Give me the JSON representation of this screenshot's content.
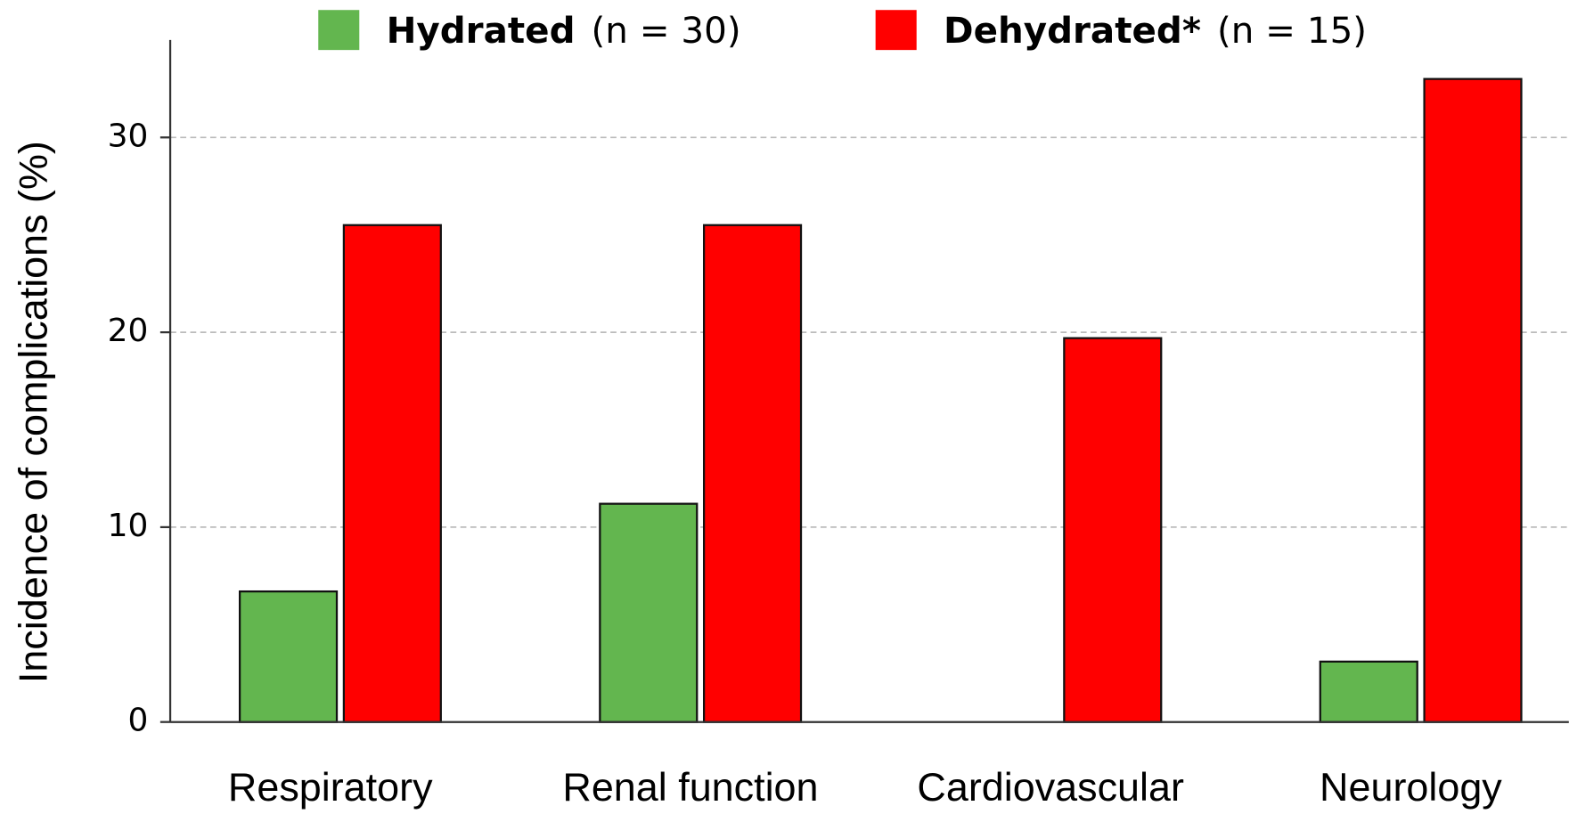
{
  "chart_data": {
    "type": "bar",
    "y_label": "Incidence of complications (%)",
    "categories": [
      "Respiratory",
      "Renal function",
      "Cardiovascular",
      "Neurology"
    ],
    "series": [
      {
        "name": "Hydrated",
        "sample_label": "(n = 30)",
        "color": "#63b64f",
        "values": [
          6.7,
          11.2,
          0,
          3.1
        ]
      },
      {
        "name": "Dehydrated*",
        "sample_label": "(n = 15)",
        "color": "#ff0000",
        "values": [
          25.5,
          25.5,
          19.7,
          33.0
        ]
      }
    ],
    "ylim": [
      0,
      35
    ],
    "yticks": [
      0,
      10,
      20,
      30
    ],
    "grid": true
  }
}
